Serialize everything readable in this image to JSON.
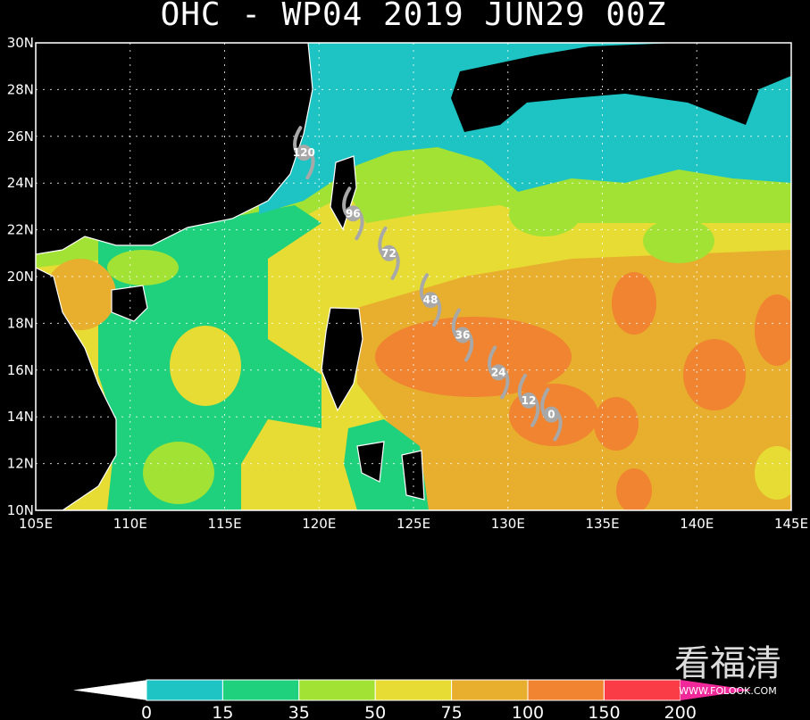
{
  "title": "OHC - WP04 2019 JUN29 00Z",
  "map": {
    "lon_range": [
      105,
      145
    ],
    "lat_range": [
      10,
      30
    ],
    "lon_ticks": [
      {
        "value": 105,
        "label": "105E"
      },
      {
        "value": 110,
        "label": "110E"
      },
      {
        "value": 115,
        "label": "115E"
      },
      {
        "value": 120,
        "label": "120E"
      },
      {
        "value": 125,
        "label": "125E"
      },
      {
        "value": 130,
        "label": "130E"
      },
      {
        "value": 135,
        "label": "135E"
      },
      {
        "value": 140,
        "label": "140E"
      },
      {
        "value": 145,
        "label": "145E"
      }
    ],
    "lat_ticks": [
      {
        "value": 10,
        "label": "10N"
      },
      {
        "value": 12,
        "label": "12N"
      },
      {
        "value": 14,
        "label": "14N"
      },
      {
        "value": 16,
        "label": "16N"
      },
      {
        "value": 18,
        "label": "18N"
      },
      {
        "value": 20,
        "label": "20N"
      },
      {
        "value": 22,
        "label": "22N"
      },
      {
        "value": 24,
        "label": "24N"
      },
      {
        "value": 26,
        "label": "26N"
      },
      {
        "value": 28,
        "label": "28N"
      },
      {
        "value": 30,
        "label": "30N"
      }
    ]
  },
  "track": [
    {
      "hour": 120,
      "lon": 119.2,
      "lat": 25.3
    },
    {
      "hour": 96,
      "lon": 121.8,
      "lat": 22.7
    },
    {
      "hour": 72,
      "lon": 123.7,
      "lat": 21.0
    },
    {
      "hour": 48,
      "lon": 125.9,
      "lat": 19.0
    },
    {
      "hour": 36,
      "lon": 127.6,
      "lat": 17.5
    },
    {
      "hour": 24,
      "lon": 129.5,
      "lat": 15.9
    },
    {
      "hour": 12,
      "lon": 131.1,
      "lat": 14.7
    },
    {
      "hour": 0,
      "lon": 132.3,
      "lat": 14.1
    }
  ],
  "colorbar": {
    "levels": [
      0,
      15,
      35,
      50,
      75,
      100,
      150,
      200
    ],
    "colors": [
      "#1ec4c4",
      "#1fd07c",
      "#a2e234",
      "#e6dc34",
      "#e8ae2e",
      "#f08430",
      "#fa3c46"
    ],
    "under_color": "#ffffff",
    "over_color": "#f0289a"
  },
  "watermark": {
    "text": "看福清",
    "url": "WWW.FOLOOK.COM"
  }
}
